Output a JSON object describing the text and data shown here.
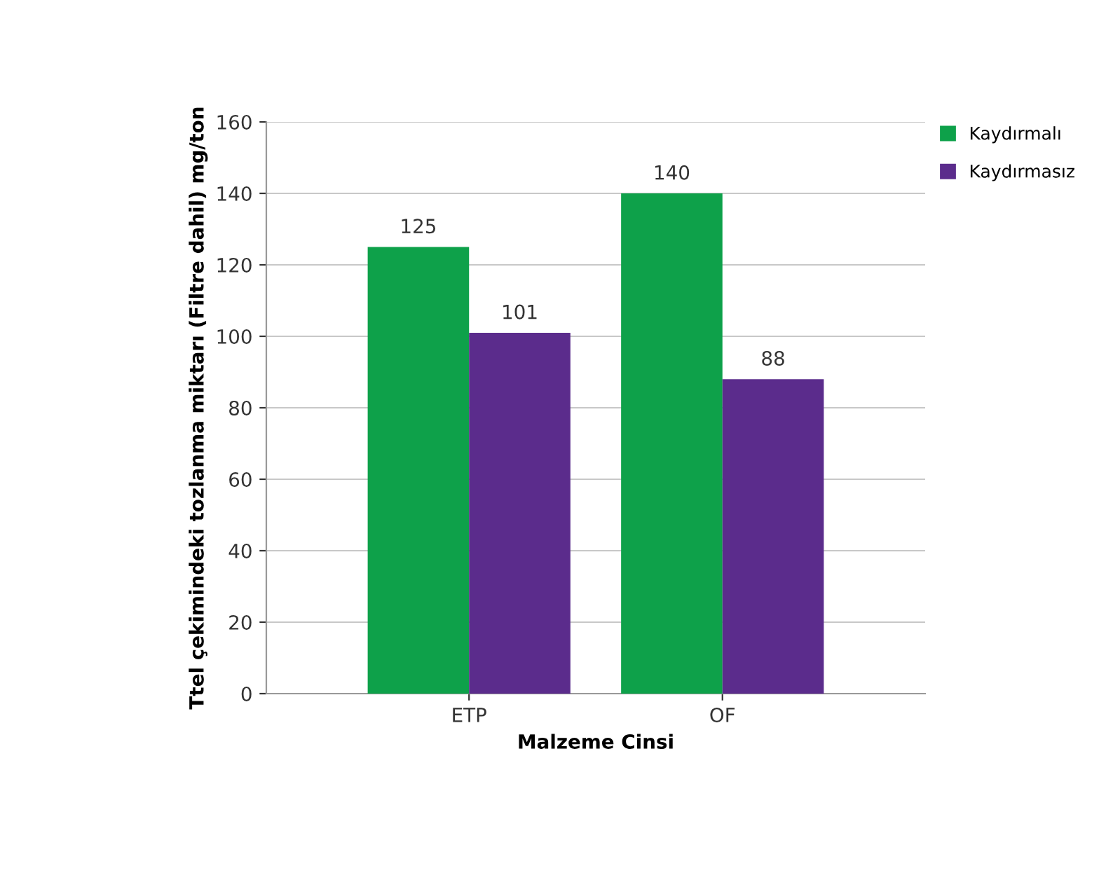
{
  "chart_data": {
    "type": "bar",
    "xlabel": "Malzeme Cinsi",
    "ylabel": "Ttel çekimindeki tozlanma miktarı (Filtre dahil) mg/ton",
    "categories": [
      "ETP",
      "OF"
    ],
    "series": [
      {
        "name": "Kaydırmalı",
        "color": "#0ea14a",
        "values": [
          125,
          140
        ]
      },
      {
        "name": "Kaydırmasız",
        "color": "#5b2c8c",
        "values": [
          101,
          88
        ]
      }
    ],
    "ylim": [
      0,
      160
    ],
    "yticks": [
      0,
      20,
      40,
      60,
      80,
      100,
      120,
      140,
      160
    ],
    "grid": "y",
    "legend": "top right",
    "data_labels": true
  }
}
